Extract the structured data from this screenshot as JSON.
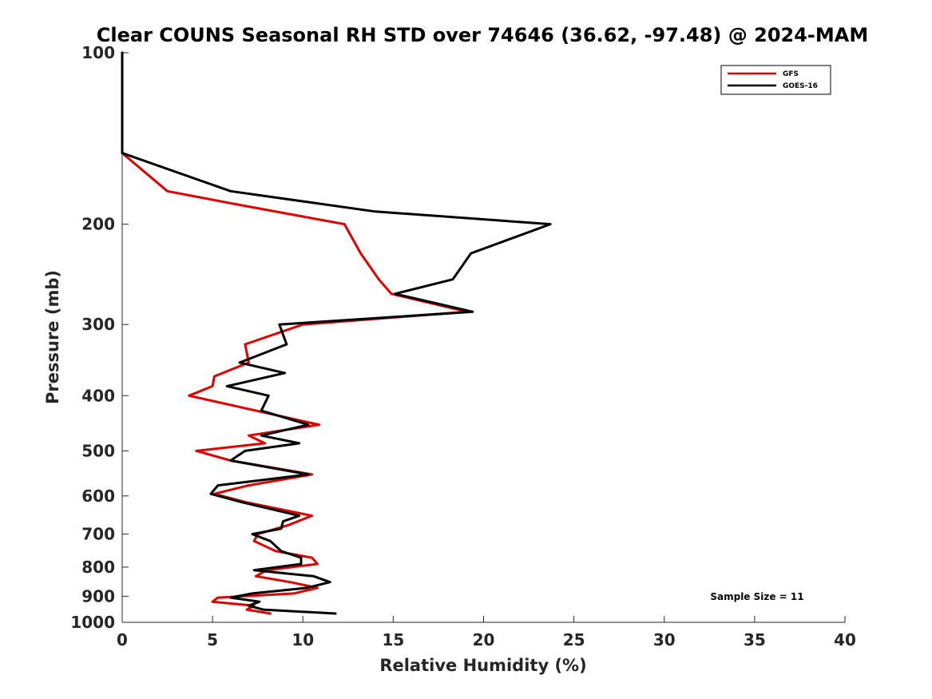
{
  "chart_data": {
    "type": "line",
    "title": "Clear COUNS Seasonal RH STD over 74646 (36.62, -97.48) @ 2024-MAM",
    "xlabel": "Relative Humidity (%)",
    "ylabel": "Pressure (mb)",
    "xlim": [
      0,
      40
    ],
    "ylim": [
      100,
      1000
    ],
    "yscale": "log",
    "y_reversed": true,
    "xticks": [
      "0",
      "5",
      "10",
      "15",
      "20",
      "25",
      "30",
      "35",
      "40"
    ],
    "yticks": [
      "100",
      "200",
      "300",
      "400",
      "500",
      "600",
      "700",
      "800",
      "900",
      "1000"
    ],
    "legend_position": "top-right",
    "annotation": "Sample Size = 11",
    "series": [
      {
        "name": "GFS",
        "color": "#e00000",
        "points": [
          [
            0.0,
            100
          ],
          [
            0.0,
            125
          ],
          [
            0.0,
            150
          ],
          [
            2.5,
            175
          ],
          [
            6.5,
            185
          ],
          [
            12.3,
            200
          ],
          [
            13.2,
            225
          ],
          [
            14.2,
            250
          ],
          [
            14.9,
            265
          ],
          [
            19.1,
            285
          ],
          [
            10.0,
            300
          ],
          [
            6.8,
            325
          ],
          [
            7.0,
            350
          ],
          [
            5.1,
            370
          ],
          [
            5.0,
            385
          ],
          [
            3.7,
            400
          ],
          [
            7.4,
            425
          ],
          [
            10.9,
            450
          ],
          [
            7.0,
            470
          ],
          [
            7.9,
            485
          ],
          [
            4.1,
            500
          ],
          [
            6.0,
            520
          ],
          [
            10.5,
            550
          ],
          [
            7.0,
            575
          ],
          [
            5.1,
            595
          ],
          [
            6.8,
            615
          ],
          [
            10.5,
            650
          ],
          [
            9.2,
            675
          ],
          [
            7.5,
            700
          ],
          [
            7.3,
            720
          ],
          [
            8.5,
            750
          ],
          [
            10.5,
            770
          ],
          [
            10.8,
            790
          ],
          [
            8.0,
            810
          ],
          [
            7.4,
            830
          ],
          [
            9.3,
            850
          ],
          [
            10.8,
            870
          ],
          [
            9.5,
            890
          ],
          [
            5.3,
            905
          ],
          [
            5.0,
            920
          ],
          [
            7.3,
            935
          ],
          [
            6.9,
            950
          ],
          [
            8.2,
            965
          ]
        ]
      },
      {
        "name": "GOES-16",
        "color": "#000000",
        "points": [
          [
            0.0,
            100
          ],
          [
            0.0,
            125
          ],
          [
            0.0,
            150
          ],
          [
            6.0,
            175
          ],
          [
            14.0,
            190
          ],
          [
            23.7,
            200
          ],
          [
            19.3,
            225
          ],
          [
            18.3,
            250
          ],
          [
            15.1,
            265
          ],
          [
            19.4,
            285
          ],
          [
            8.7,
            300
          ],
          [
            9.1,
            325
          ],
          [
            6.5,
            350
          ],
          [
            9.0,
            365
          ],
          [
            5.8,
            385
          ],
          [
            8.1,
            400
          ],
          [
            7.7,
            425
          ],
          [
            10.3,
            450
          ],
          [
            7.7,
            470
          ],
          [
            9.8,
            485
          ],
          [
            6.8,
            500
          ],
          [
            6.0,
            520
          ],
          [
            10.3,
            550
          ],
          [
            5.3,
            575
          ],
          [
            4.9,
            595
          ],
          [
            6.6,
            615
          ],
          [
            9.8,
            650
          ],
          [
            8.9,
            665
          ],
          [
            8.8,
            685
          ],
          [
            7.2,
            700
          ],
          [
            8.2,
            720
          ],
          [
            8.8,
            750
          ],
          [
            9.9,
            770
          ],
          [
            9.9,
            790
          ],
          [
            7.3,
            810
          ],
          [
            10.6,
            830
          ],
          [
            11.5,
            850
          ],
          [
            10.2,
            870
          ],
          [
            7.2,
            890
          ],
          [
            6.0,
            905
          ],
          [
            7.6,
            920
          ],
          [
            7.0,
            935
          ],
          [
            7.8,
            950
          ],
          [
            11.8,
            965
          ]
        ]
      }
    ]
  }
}
